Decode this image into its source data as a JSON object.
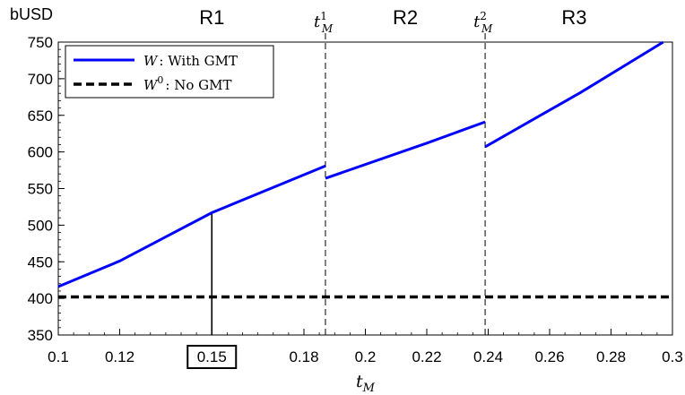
{
  "chart_data": {
    "type": "line",
    "title": "",
    "ylabel": "bUSD",
    "xlabel": {
      "base": "t",
      "sub": "M"
    },
    "xlim": [
      0.1,
      0.3
    ],
    "ylim": [
      350,
      750
    ],
    "x_ticks": [
      {
        "value": 0.1,
        "label": "0.1"
      },
      {
        "value": 0.12,
        "label": "0.12"
      },
      {
        "value": 0.15,
        "label": "0.15",
        "boxed": true
      },
      {
        "value": 0.18,
        "label": "0.18"
      },
      {
        "value": 0.2,
        "label": "0.2"
      },
      {
        "value": 0.22,
        "label": "0.22"
      },
      {
        "value": 0.24,
        "label": "0.24"
      },
      {
        "value": 0.26,
        "label": "0.26"
      },
      {
        "value": 0.28,
        "label": "0.28"
      },
      {
        "value": 0.3,
        "label": "0.3"
      }
    ],
    "y_ticks": [
      {
        "value": 350,
        "label": "350"
      },
      {
        "value": 400,
        "label": "400"
      },
      {
        "value": 450,
        "label": "450"
      },
      {
        "value": 500,
        "label": "500"
      },
      {
        "value": 550,
        "label": "550"
      },
      {
        "value": 600,
        "label": "600"
      },
      {
        "value": 650,
        "label": "650"
      },
      {
        "value": 700,
        "label": "700"
      },
      {
        "value": 750,
        "label": "750"
      }
    ],
    "series": [
      {
        "name": {
          "var": "W",
          "sup": "",
          "text": ": With GMT"
        },
        "color": "#0000ff",
        "style": "solid",
        "segments": [
          [
            [
              0.1,
              416
            ],
            [
              0.12,
              451
            ],
            [
              0.15,
              517
            ],
            [
              0.187,
              581
            ]
          ],
          [
            [
              0.187,
              564
            ],
            [
              0.22,
              612
            ],
            [
              0.239,
              641
            ]
          ],
          [
            [
              0.239,
              607
            ],
            [
              0.27,
              681
            ],
            [
              0.297,
              750
            ]
          ]
        ]
      },
      {
        "name": {
          "var": "W",
          "sup": "0",
          "text": ": No GMT"
        },
        "color": "#000000",
        "style": "dashed",
        "segments": [
          [
            [
              0.1,
              402
            ],
            [
              0.3,
              402
            ]
          ]
        ]
      }
    ],
    "thresholds": [
      {
        "x": 0.187,
        "label": {
          "base": "t",
          "sup": "1",
          "sub": "M"
        }
      },
      {
        "x": 0.239,
        "label": {
          "base": "t",
          "sup": "2",
          "sub": "M"
        }
      }
    ],
    "regions": [
      {
        "label": "R1",
        "x": 0.15
      },
      {
        "label": "R2",
        "x": 0.213
      },
      {
        "label": "R3",
        "x": 0.268
      }
    ],
    "marker_line": {
      "x": 0.15,
      "y": 517
    },
    "legend_position": "top-left",
    "grid": false
  }
}
